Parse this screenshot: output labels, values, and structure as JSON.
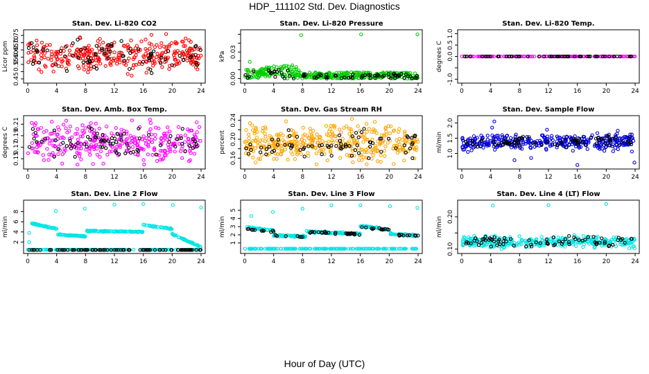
{
  "figure": {
    "title": "HDP_111102  Std. Dev. Diagnostics",
    "xlabel": "Hour of Day (UTC)"
  },
  "chart_data": [
    {
      "id": "co2",
      "type": "scatter",
      "title": "Stan. Dev. Li-820 CO2",
      "ylabel": "Licor ppm",
      "xlim": [
        0,
        24
      ],
      "xticks": [
        0,
        4,
        8,
        12,
        16,
        20,
        24
      ],
      "ylim": [
        0.44,
        0.77
      ],
      "yticks": [
        0.45,
        0.5,
        0.55,
        0.6,
        0.65,
        0.7,
        0.75
      ],
      "ytick_labels": [
        "0.45",
        "",
        "0.55",
        "0.60",
        "0.65",
        "0.70",
        "0.75"
      ],
      "series": [
        {
          "color": "#ff0000",
          "dense": {
            "n": 330,
            "pattern": "band",
            "mean": 0.615,
            "sd": 0.055,
            "lo": 0.45,
            "hi": 0.76
          }
        },
        {
          "color": "#000000",
          "dense": {
            "n": 75,
            "pattern": "band",
            "mean": 0.61,
            "sd": 0.045,
            "lo": 0.46,
            "hi": 0.74
          }
        }
      ]
    },
    {
      "id": "pressure",
      "type": "scatter",
      "title": "Stan. Dev. Li-820 Pressure",
      "ylabel": "kPa",
      "xlim": [
        0,
        24
      ],
      "xticks": [
        0,
        4,
        8,
        12,
        16,
        20,
        24
      ],
      "ylim": [
        -0.002,
        0.052
      ],
      "yticks": [
        0.0,
        0.01,
        0.02,
        0.03,
        0.04,
        0.05
      ],
      "ytick_labels": [
        "0.00",
        "",
        "",
        "0.03",
        "",
        ""
      ],
      "series": [
        {
          "color": "#00cc00",
          "dense": {
            "n": 360,
            "pattern": "pressure",
            "lo": 0.0,
            "hi": 0.016
          },
          "points": [
            [
              0.7,
              0.019
            ],
            [
              7.8,
              0.049
            ],
            [
              16.1,
              0.05
            ],
            [
              23.9,
              0.05
            ]
          ]
        },
        {
          "color": "#000000",
          "dense": {
            "n": 75,
            "pattern": "pressure",
            "lo": 0.0,
            "hi": 0.012
          }
        }
      ]
    },
    {
      "id": "temp",
      "type": "scatter",
      "title": "Stan. Dev. Li-820 Temp.",
      "ylabel": "degrees C",
      "xlim": [
        0,
        24
      ],
      "xticks": [
        0,
        4,
        8,
        12,
        16,
        20,
        24
      ],
      "ylim": [
        -1.05,
        1.05
      ],
      "yticks": [
        -1.0,
        -0.5,
        0.0,
        0.5,
        1.0
      ],
      "ytick_labels": [
        "-1.0",
        "",
        "0.0",
        "0.5",
        "1.0"
      ],
      "series": [
        {
          "color": "#ff00ff",
          "dense": {
            "n": 120,
            "pattern": "flat",
            "value": 0.0
          }
        },
        {
          "color": "#000000",
          "dense": {
            "n": 60,
            "pattern": "flat",
            "value": 0.0
          }
        }
      ]
    },
    {
      "id": "ambbox",
      "type": "scatter",
      "title": "Stan. Dev. Amb. Box Temp.",
      "ylabel": "degrees C",
      "xlim": [
        0,
        24
      ],
      "xticks": [
        0,
        4,
        8,
        12,
        16,
        20,
        24
      ],
      "ylim": [
        0.137,
        0.22
      ],
      "yticks": [
        0.15,
        0.17,
        0.19,
        0.21
      ],
      "ytick_labels": [
        "0.15",
        "0.17",
        "0.19",
        "0.21"
      ],
      "series": [
        {
          "color": "#ff00ff",
          "dense": {
            "n": 330,
            "pattern": "band",
            "mean": 0.178,
            "sd": 0.015,
            "lo": 0.14,
            "hi": 0.218
          }
        },
        {
          "color": "#000000",
          "dense": {
            "n": 75,
            "pattern": "band",
            "mean": 0.178,
            "sd": 0.012,
            "lo": 0.148,
            "hi": 0.21
          }
        }
      ]
    },
    {
      "id": "rh",
      "type": "scatter",
      "title": "Stan. Dev. Gas Stream RH",
      "ylabel": "percent",
      "xlim": [
        0,
        24
      ],
      "xticks": [
        0,
        4,
        8,
        12,
        16,
        20,
        24
      ],
      "ylim": [
        0.143,
        0.244
      ],
      "yticks": [
        0.16,
        0.18,
        0.2,
        0.22,
        0.24
      ],
      "ytick_labels": [
        "0.16",
        "",
        "0.20",
        "",
        "0.24"
      ],
      "series": [
        {
          "color": "#ffa500",
          "dense": {
            "n": 380,
            "pattern": "band",
            "mean": 0.192,
            "sd": 0.018,
            "lo": 0.147,
            "hi": 0.243
          }
        },
        {
          "color": "#000000",
          "dense": {
            "n": 75,
            "pattern": "band",
            "mean": 0.19,
            "sd": 0.014,
            "lo": 0.16,
            "hi": 0.225
          }
        }
      ]
    },
    {
      "id": "sampleflow",
      "type": "scatter",
      "title": "Stan. Dev. Sample Flow",
      "ylabel": "ml/min",
      "xlim": [
        0,
        24
      ],
      "xticks": [
        0,
        4,
        8,
        12,
        16,
        20,
        24
      ],
      "ylim": [
        0.58,
        2.15
      ],
      "yticks": [
        1.0,
        1.5,
        2.0
      ],
      "ytick_labels": [
        "1.0",
        "1.5",
        "2.0"
      ],
      "series": [
        {
          "color": "#0000dd",
          "dense": {
            "n": 360,
            "pattern": "band",
            "mean": 1.37,
            "sd": 0.12,
            "lo": 0.95,
            "hi": 1.8
          },
          "points": [
            [
              4.5,
              2.05
            ],
            [
              4.2,
              1.85
            ],
            [
              16.0,
              0.62
            ],
            [
              23.9,
              0.7
            ],
            [
              7.3,
              0.78
            ],
            [
              9.6,
              0.85
            ],
            [
              11.8,
              1.78
            ],
            [
              21.6,
              1.75
            ]
          ]
        },
        {
          "color": "#000000",
          "dense": {
            "n": 75,
            "pattern": "band",
            "mean": 1.37,
            "sd": 0.08,
            "lo": 1.15,
            "hi": 1.6
          }
        }
      ]
    },
    {
      "id": "line2",
      "type": "scatter",
      "title": "Stan. Dev. Line 2 Flow",
      "ylabel": "ml/min",
      "xlim": [
        0,
        24
      ],
      "xticks": [
        0,
        4,
        8,
        12,
        16,
        20,
        24
      ],
      "ylim": [
        0.3,
        9.7
      ],
      "yticks": [
        2,
        4,
        6,
        8
      ],
      "ytick_labels": [
        "2",
        "4",
        "6",
        "8"
      ],
      "series": [
        {
          "color": "#00e5e5",
          "dense": {
            "n": 300,
            "pattern": "steps",
            "segments": [
              [
                0.5,
                4,
                5.7,
                4.6
              ],
              [
                4,
                8,
                3.5,
                3.1
              ],
              [
                8,
                16,
                4.2,
                4.0
              ],
              [
                16,
                20,
                5.4,
                4.6
              ],
              [
                20,
                24,
                3.6,
                1.0
              ]
            ],
            "bottom": 0.5
          },
          "points": [
            [
              3.9,
              8.1
            ],
            [
              7.9,
              8.6
            ],
            [
              12.0,
              9.4
            ],
            [
              16.0,
              9.5
            ],
            [
              20.1,
              9.3
            ],
            [
              24.0,
              8.8
            ],
            [
              0.2,
              3.8
            ],
            [
              0.2,
              2.0
            ]
          ]
        },
        {
          "color": "#000000",
          "dense": {
            "n": 90,
            "pattern": "flat",
            "value": 0.45
          }
        }
      ]
    },
    {
      "id": "line3",
      "type": "scatter",
      "title": "Stan. Dev. Line 3 Flow",
      "ylabel": "ml/min",
      "xlim": [
        0,
        24
      ],
      "xticks": [
        0,
        4,
        8,
        12,
        16,
        20,
        24
      ],
      "ylim": [
        0.05,
        5.9
      ],
      "yticks": [
        1,
        2,
        3,
        4,
        5
      ],
      "ytick_labels": [
        "1",
        "2",
        "3",
        "4",
        "5"
      ],
      "series": [
        {
          "color": "#00e5e5",
          "dense": {
            "n": 300,
            "pattern": "steps",
            "segments": [
              [
                0.3,
                4,
                2.9,
                2.5
              ],
              [
                4,
                8.5,
                1.9,
                1.8
              ],
              [
                8.5,
                16,
                2.4,
                2.1
              ],
              [
                16,
                20,
                3.1,
                2.6
              ],
              [
                20,
                24,
                2.1,
                1.9
              ]
            ],
            "bottom": 0.3
          },
          "points": [
            [
              0.9,
              4.3
            ],
            [
              3.9,
              4.8
            ],
            [
              8.0,
              5.2
            ],
            [
              12.0,
              5.6
            ],
            [
              16.0,
              5.6
            ],
            [
              20.1,
              5.5
            ],
            [
              23.9,
              5.3
            ]
          ]
        },
        {
          "color": "#000000",
          "dense": {
            "n": 70,
            "pattern": "steps",
            "segments": [
              [
                0.3,
                4,
                2.7,
                2.4
              ],
              [
                4,
                8.5,
                1.9,
                1.8
              ],
              [
                8.5,
                16,
                2.35,
                2.05
              ],
              [
                16,
                20,
                2.9,
                2.6
              ],
              [
                20,
                24,
                2.0,
                1.9
              ]
            ]
          }
        }
      ]
    },
    {
      "id": "line4",
      "type": "scatter",
      "title": "Stan. Dev. Line 4 (LT) Flow",
      "ylabel": "ml/min",
      "xlim": [
        0,
        24
      ],
      "xticks": [
        0,
        4,
        8,
        12,
        16,
        20,
        24
      ],
      "ylim": [
        0.095,
        0.243
      ],
      "yticks": [
        0.1,
        0.15,
        0.2
      ],
      "ytick_labels": [
        "0.10",
        "",
        "0.20"
      ],
      "series": [
        {
          "color": "#00e5e5",
          "dense": {
            "n": 330,
            "pattern": "band",
            "mean": 0.122,
            "sd": 0.008,
            "lo": 0.1,
            "hi": 0.145
          },
          "points": [
            [
              4.3,
              0.235
            ],
            [
              12.0,
              0.236
            ],
            [
              20.0,
              0.24
            ]
          ]
        },
        {
          "color": "#000000",
          "dense": {
            "n": 75,
            "pattern": "band",
            "mean": 0.123,
            "sd": 0.007,
            "lo": 0.108,
            "hi": 0.142
          }
        }
      ]
    }
  ]
}
